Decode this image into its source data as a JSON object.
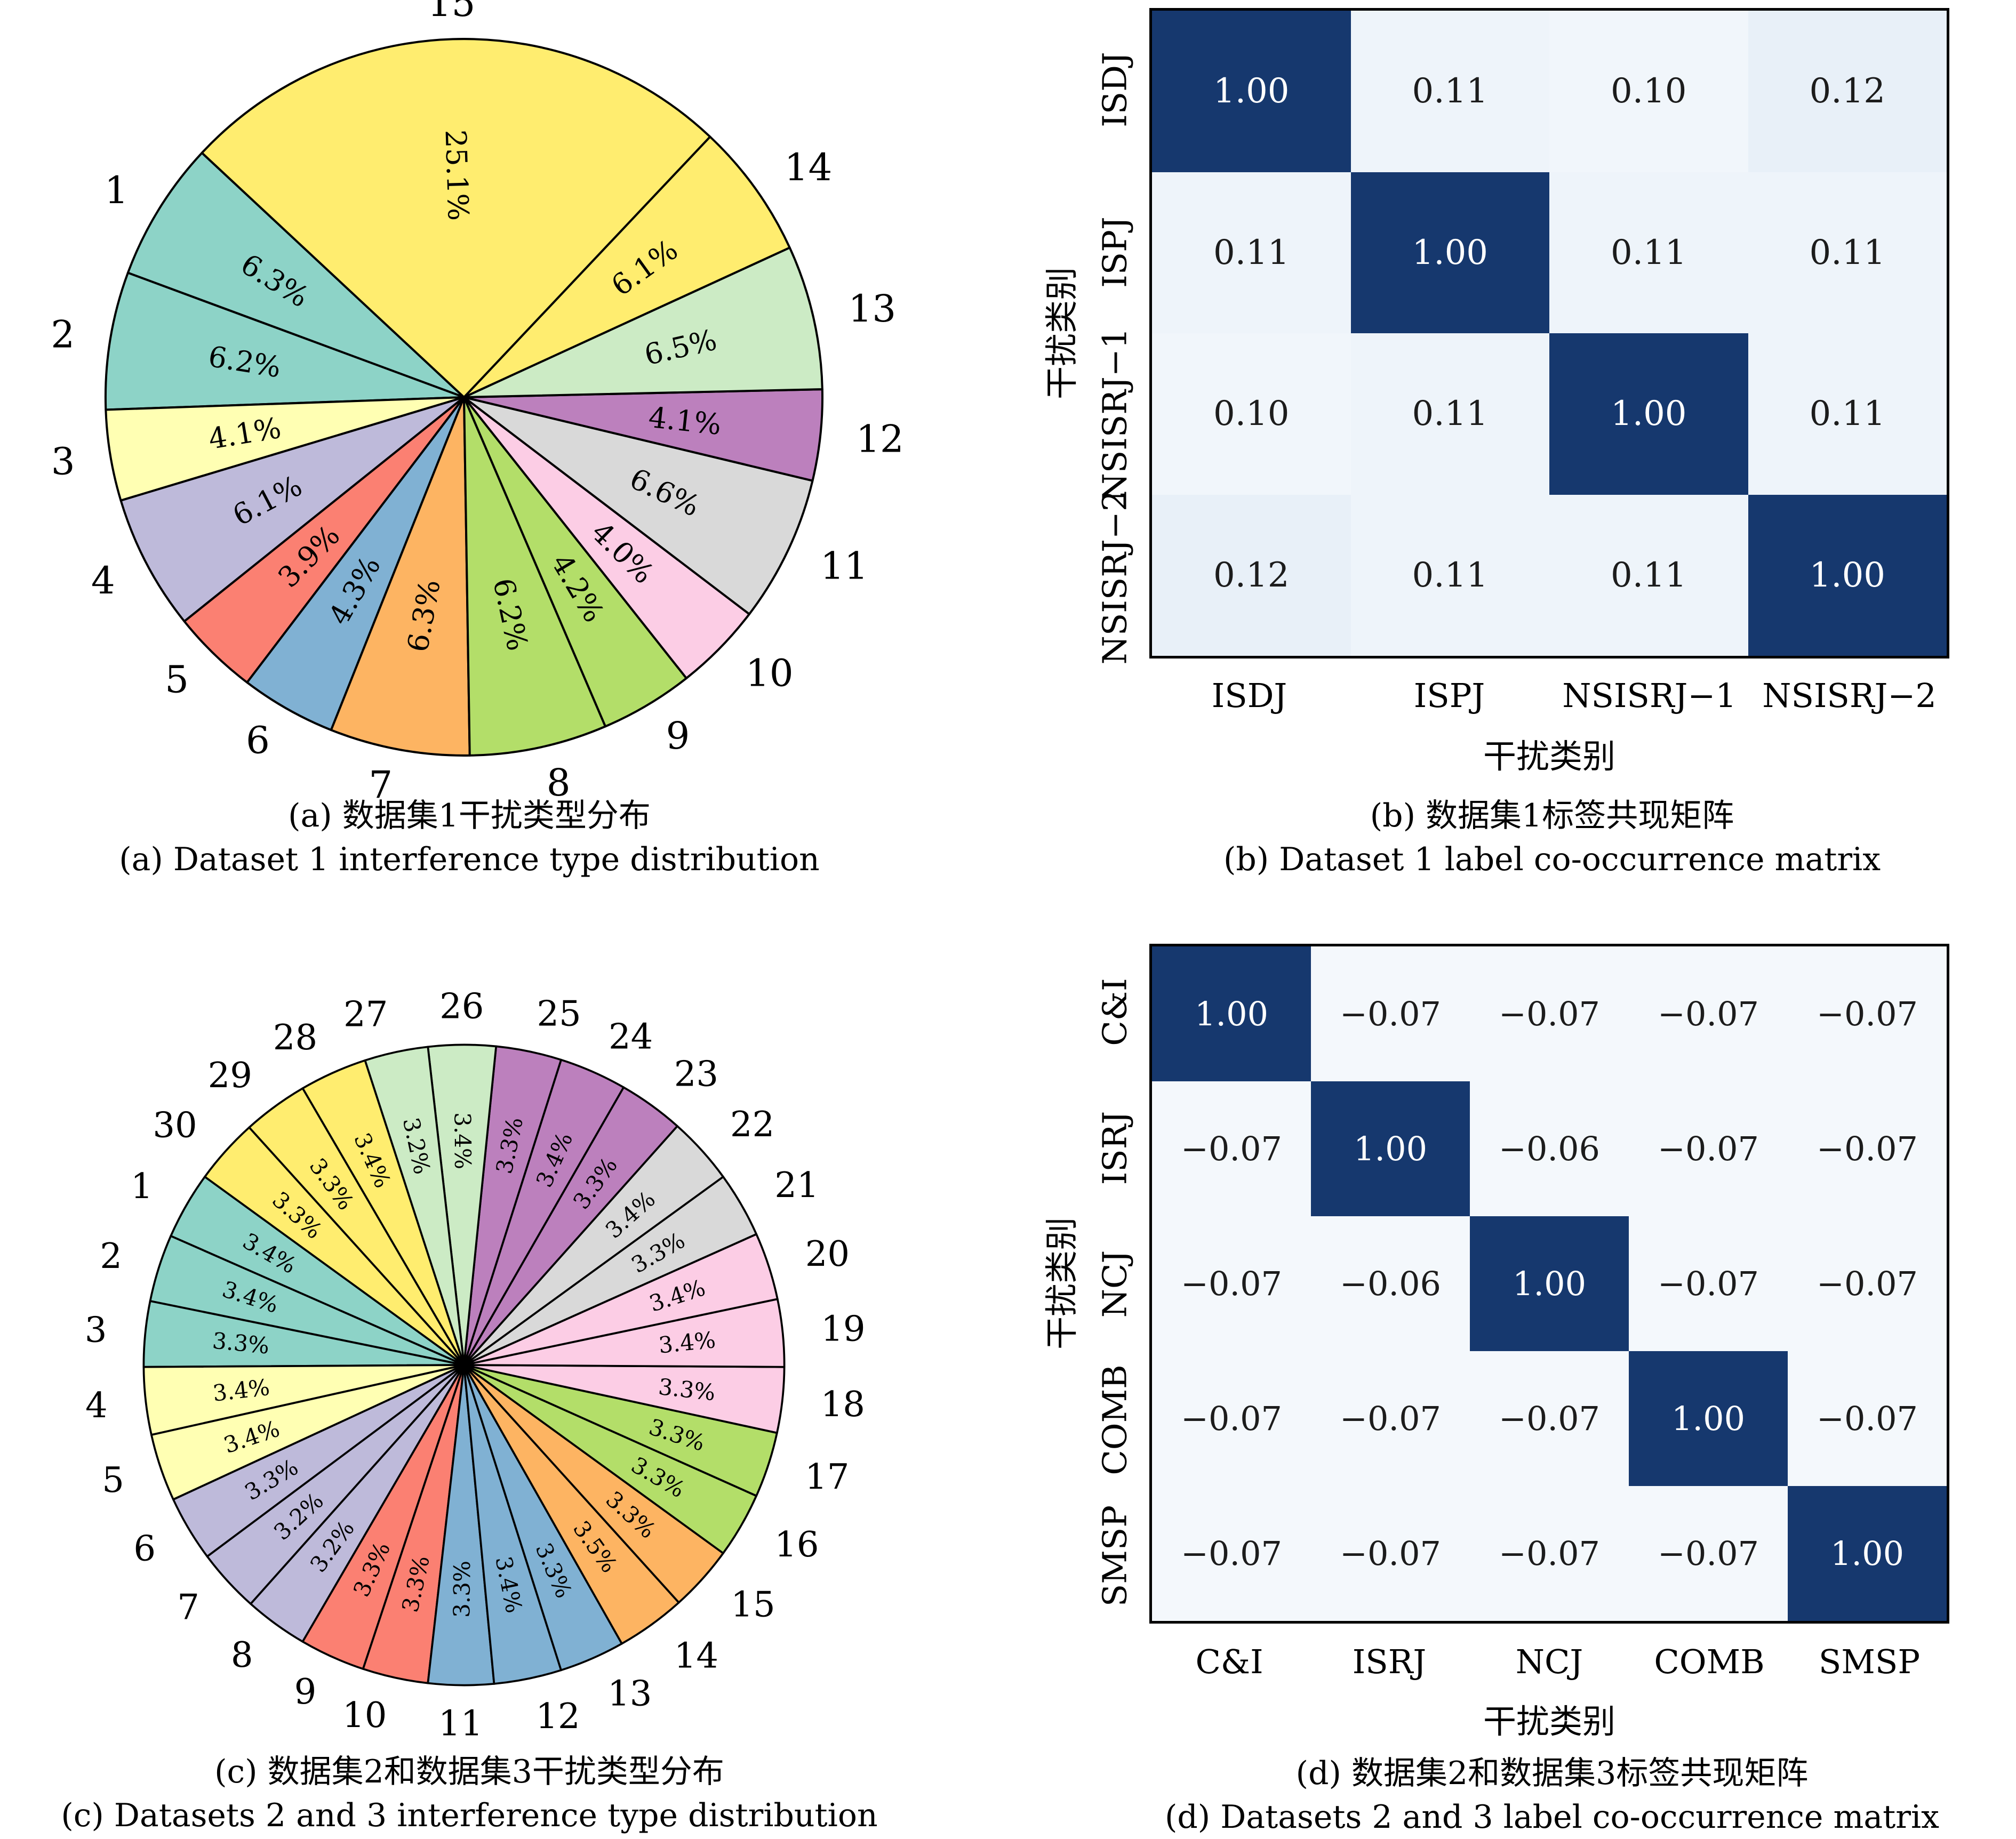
{
  "chart_data": [
    {
      "id": "pie-a",
      "type": "pie",
      "title_zh": "(a) 数据集1干扰类型分布",
      "title_en": "(a) Dataset 1 interference type distribution",
      "categories": [
        "1",
        "2",
        "3",
        "4",
        "5",
        "6",
        "7",
        "8",
        "9",
        "10",
        "11",
        "12",
        "13",
        "14",
        "15"
      ],
      "values": [
        6.3,
        6.2,
        4.1,
        6.1,
        3.9,
        4.3,
        6.3,
        6.2,
        4.2,
        4.0,
        6.6,
        4.1,
        6.5,
        6.1,
        25.1
      ],
      "unit": "%",
      "colors": [
        "#8dd3c7",
        "#8dd3c7",
        "#ffffb3",
        "#bebada",
        "#fb8072",
        "#80b1d3",
        "#fdb462",
        "#b3de69",
        "#b3de69",
        "#fccde5",
        "#d9d9d9",
        "#bc80bd",
        "#ccebc5",
        "#ffed6f",
        "#ffed6f"
      ],
      "start_angle_deg": 137,
      "direction": "counterclockwise",
      "label_style": "outer numbers horizontal, percent labels rotated radially",
      "edge_color": "#000000"
    },
    {
      "id": "heatmap-b",
      "type": "heatmap",
      "title_zh": "(b) 数据集1标签共现矩阵",
      "title_en": "(b) Dataset 1 label co-occurrence matrix",
      "x_categories": [
        "ISDJ",
        "ISPJ",
        "NSISRJ−1",
        "NSISRJ−2"
      ],
      "y_categories": [
        "ISDJ",
        "ISPJ",
        "NSISRJ−1",
        "NSISRJ−2"
      ],
      "xlabel": "干扰类别",
      "ylabel": "干扰类别",
      "values": [
        [
          1.0,
          0.11,
          0.1,
          0.12
        ],
        [
          0.11,
          1.0,
          0.11,
          0.11
        ],
        [
          0.1,
          0.11,
          1.0,
          0.11
        ],
        [
          0.12,
          0.11,
          0.11,
          1.0
        ]
      ],
      "color_high": "#16386e",
      "color_low": "#f1f6fb",
      "text_color_high": "#ffffff",
      "text_color_low": "#1c1c1c"
    },
    {
      "id": "pie-c",
      "type": "pie",
      "title_zh": "(c) 数据集2和数据集3干扰类型分布",
      "title_en": "(c) Datasets 2 and 3 interference type distribution",
      "categories": [
        "1",
        "2",
        "3",
        "4",
        "5",
        "6",
        "7",
        "8",
        "9",
        "10",
        "11",
        "12",
        "13",
        "14",
        "15",
        "16",
        "17",
        "18",
        "19",
        "20",
        "21",
        "22",
        "23",
        "24",
        "25",
        "26",
        "27",
        "28",
        "29",
        "30"
      ],
      "values": [
        3.4,
        3.4,
        3.3,
        3.4,
        3.4,
        3.3,
        3.2,
        3.2,
        3.3,
        3.3,
        3.3,
        3.4,
        3.3,
        3.5,
        3.3,
        3.3,
        3.3,
        3.3,
        3.4,
        3.4,
        3.3,
        3.4,
        3.3,
        3.4,
        3.3,
        3.4,
        3.2,
        3.4,
        3.3,
        3.3
      ],
      "unit": "%",
      "colors": [
        "#8dd3c7",
        "#8dd3c7",
        "#8dd3c7",
        "#ffffb3",
        "#ffffb3",
        "#bebada",
        "#bebada",
        "#bebada",
        "#fb8072",
        "#fb8072",
        "#80b1d3",
        "#80b1d3",
        "#80b1d3",
        "#fdb462",
        "#fdb462",
        "#b3de69",
        "#b3de69",
        "#fccde5",
        "#fccde5",
        "#fccde5",
        "#d9d9d9",
        "#d9d9d9",
        "#bc80bd",
        "#bc80bd",
        "#bc80bd",
        "#ccebc5",
        "#ccebc5",
        "#ffed6f",
        "#ffed6f",
        "#ffed6f"
      ],
      "start_angle_deg": 144,
      "direction": "counterclockwise",
      "label_style": "outer numbers horizontal, percent labels rotated radially",
      "edge_color": "#000000"
    },
    {
      "id": "heatmap-d",
      "type": "heatmap",
      "title_zh": "(d) 数据集2和数据集3标签共现矩阵",
      "title_en": "(d) Datasets 2 and 3 label co-occurrence matrix",
      "x_categories": [
        "C&I",
        "ISRJ",
        "NCJ",
        "COMB",
        "SMSP"
      ],
      "y_categories": [
        "C&I",
        "ISRJ",
        "NCJ",
        "COMB",
        "SMSP"
      ],
      "xlabel": "干扰类别",
      "ylabel": "干扰类别",
      "values": [
        [
          1.0,
          -0.07,
          -0.07,
          -0.07,
          -0.07
        ],
        [
          -0.07,
          1.0,
          -0.06,
          -0.07,
          -0.07
        ],
        [
          -0.07,
          -0.06,
          1.0,
          -0.07,
          -0.07
        ],
        [
          -0.07,
          -0.07,
          -0.07,
          1.0,
          -0.07
        ],
        [
          -0.07,
          -0.07,
          -0.07,
          -0.07,
          1.0
        ]
      ],
      "color_high": "#16386e",
      "color_low": "#f1f6fb",
      "text_color_high": "#ffffff",
      "text_color_low": "#1c1c1c"
    }
  ]
}
